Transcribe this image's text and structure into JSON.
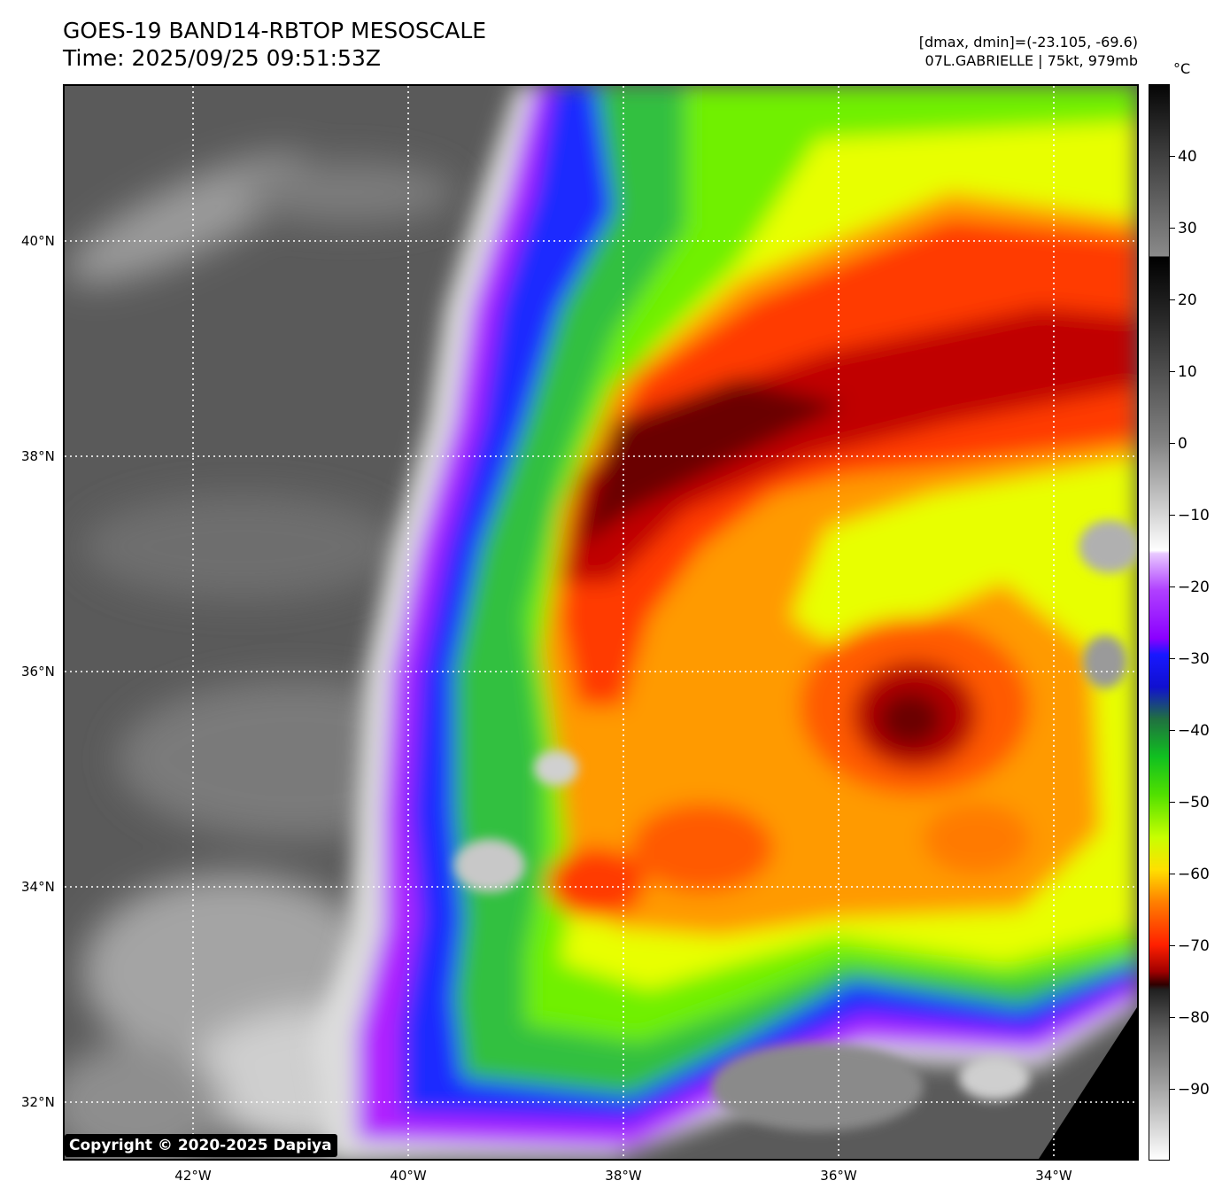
{
  "header": {
    "title_line1": "GOES-19 BAND14-RBTOP MESOSCALE",
    "title_line2": "Time: 2025/09/25 09:51:53Z",
    "meta_line1": "[dmax, dmin]=(-23.105, -69.6)",
    "meta_line2": "07L.GABRIELLE | 75kt, 979mb"
  },
  "map": {
    "lat_labels": [
      "40°N",
      "38°N",
      "36°N",
      "34°N",
      "32°N"
    ],
    "lon_labels": [
      "42°W",
      "40°W",
      "38°W",
      "36°W",
      "34°W"
    ],
    "copyright": "Copyright © 2020-2025 Dapiya"
  },
  "colorbar": {
    "unit": "°C",
    "labels": [
      "40",
      "30",
      "20",
      "10",
      "0",
      "−10",
      "−20",
      "−30",
      "−40",
      "−50",
      "−60",
      "−70",
      "−80",
      "−90"
    ]
  },
  "colors": {
    "clear_sky_gray": "#5a5a5a",
    "cold_top_dark_red": "#7a0000",
    "red": "#e01000",
    "orange": "#ff8a00",
    "yellow": "#e8ff00",
    "green": "#30e000",
    "blue": "#1020ff",
    "purple": "#9a00ff",
    "space_black": "#000000"
  }
}
